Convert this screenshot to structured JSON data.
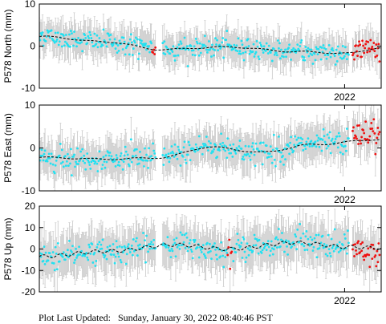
{
  "footer": {
    "label": "Plot Last Updated:",
    "timestamp": "Sunday, January 30, 2022 08:40:46 PST"
  },
  "colors": {
    "point": "#22e0f0",
    "recent_point": "#ee1111",
    "error_bar": "#c8c8c8",
    "model_line": "#000000",
    "frame": "#000000"
  },
  "chart_data": [
    {
      "type": "scatter",
      "ylabel": "P578 North (mm)",
      "ylim": [
        -10,
        10
      ],
      "yticks": [
        -10,
        0,
        10
      ],
      "year_tick": "2022",
      "year_tick_fraction": 0.893,
      "grid": false,
      "error_bar": 3.5,
      "model_trend": [
        [
          0.0,
          2.3
        ],
        [
          0.2,
          1.0
        ],
        [
          0.35,
          -0.8
        ],
        [
          0.55,
          -0.2
        ],
        [
          0.75,
          -1.3
        ],
        [
          0.9,
          -1.7
        ],
        [
          1.0,
          -0.4
        ]
      ],
      "points_summary": "dense daily cyan points scattered about the dashed trend; red points mark the most recent data",
      "spread": 2.0,
      "recent_offset": 0.0
    },
    {
      "type": "scatter",
      "ylabel": "P578 East (mm)",
      "ylim": [
        -10,
        10
      ],
      "yticks": [
        -10,
        0,
        10
      ],
      "year_tick": "2022",
      "year_tick_fraction": 0.893,
      "grid": false,
      "error_bar": 4.0,
      "model_trend": [
        [
          0.0,
          -2.2
        ],
        [
          0.2,
          -2.6
        ],
        [
          0.35,
          -2.3
        ],
        [
          0.5,
          0.2
        ],
        [
          0.65,
          -1.0
        ],
        [
          0.8,
          0.8
        ],
        [
          1.0,
          2.0
        ]
      ],
      "points_summary": "dense daily cyan points scattered about the dashed trend; red points mark the most recent data",
      "spread": 2.2,
      "recent_offset": 1.5
    },
    {
      "type": "scatter",
      "ylabel": "P578 Up (mm)",
      "ylim": [
        -20,
        20
      ],
      "yticks": [
        -20,
        -10,
        0,
        10,
        20
      ],
      "year_tick": "2022",
      "year_tick_fraction": 0.893,
      "grid": false,
      "error_bar": 9.0,
      "model_trend": [
        [
          0.0,
          -3.5
        ],
        [
          0.2,
          -1.0
        ],
        [
          0.4,
          2.0
        ],
        [
          0.55,
          0.0
        ],
        [
          0.75,
          3.0
        ],
        [
          0.9,
          1.0
        ],
        [
          1.0,
          0.5
        ]
      ],
      "points_summary": "dense daily cyan points scattered about the dashed trend; red points mark the most recent data",
      "spread": 4.5,
      "recent_offset": -1.0
    }
  ]
}
